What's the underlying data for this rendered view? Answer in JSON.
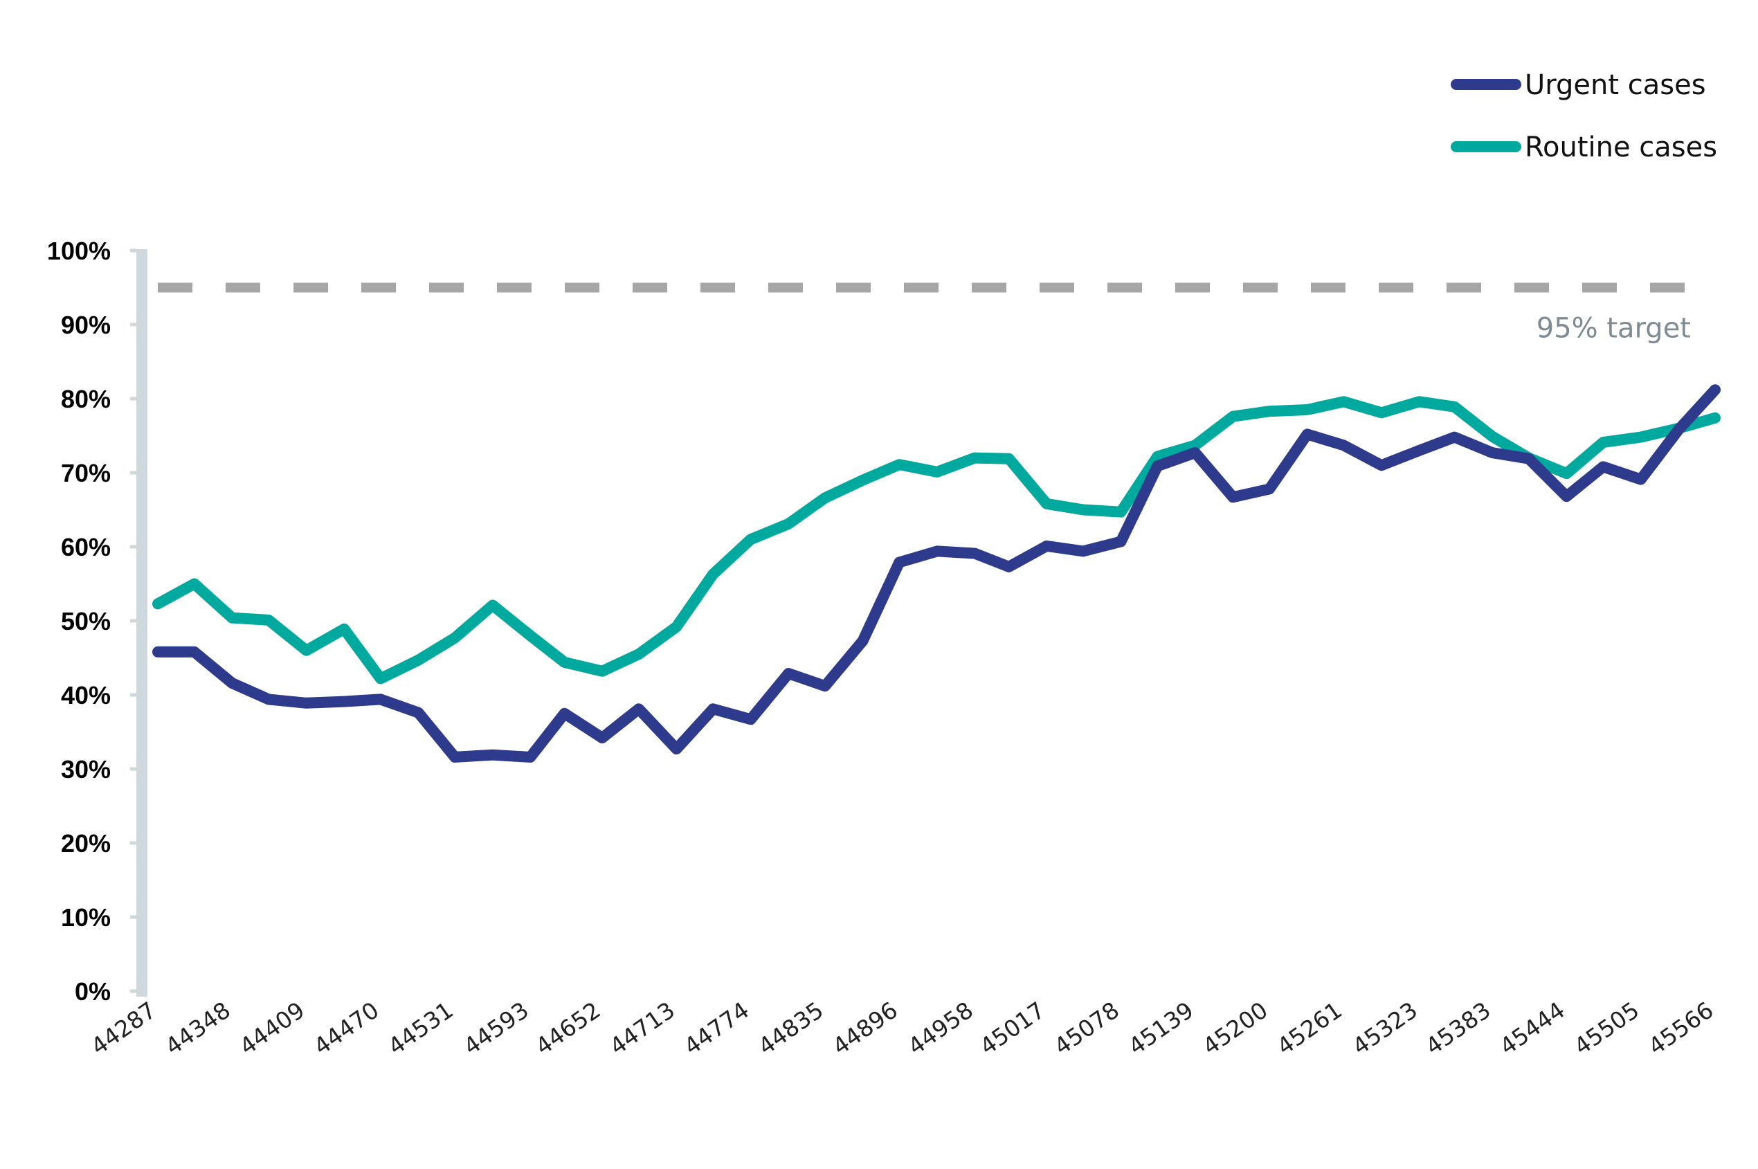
{
  "chart_data": {
    "type": "line",
    "x_tick_labels": [
      "44287",
      "44348",
      "44409",
      "44470",
      "44531",
      "44593",
      "44652",
      "44713",
      "44774",
      "44835",
      "44896",
      "44958",
      "45017",
      "45078",
      "45139",
      "45200",
      "45261",
      "45323",
      "45383",
      "45444",
      "45505",
      "45566"
    ],
    "y_tick_labels": [
      "0%",
      "10%",
      "20%",
      "30%",
      "40%",
      "50%",
      "60%",
      "70%",
      "80%",
      "90%",
      "100%"
    ],
    "ylim": [
      0,
      100
    ],
    "xlim": [
      44287,
      45566
    ],
    "grid": false,
    "legend_position": "top-right",
    "series": [
      {
        "name": "Urgent cases",
        "color": "#2e3a8c",
        "x": [
          44287,
          44317,
          44348,
          44378,
          44409,
          44440,
          44470,
          44501,
          44531,
          44562,
          44593,
          44621,
          44652,
          44682,
          44713,
          44743,
          44774,
          44805,
          44835,
          44866,
          44896,
          44927,
          44958,
          44986,
          45017,
          45047,
          45078,
          45108,
          45139,
          45170,
          45200,
          45231,
          45261,
          45292,
          45323,
          45352,
          45383,
          45413,
          45444,
          45474,
          45505,
          45536,
          45566
        ],
        "values": [
          45.8,
          45.8,
          41.6,
          39.4,
          38.9,
          39.1,
          39.4,
          37.6,
          31.6,
          31.9,
          31.6,
          37.5,
          34.2,
          38.1,
          32.7,
          38.1,
          36.7,
          42.9,
          41.2,
          47.3,
          57.9,
          59.4,
          59.1,
          57.3,
          60.1,
          59.4,
          60.7,
          70.9,
          72.7,
          66.7,
          67.8,
          75.2,
          73.7,
          71.0,
          73.0,
          74.8,
          72.7,
          71.9,
          66.8,
          70.8,
          69.1,
          75.8,
          81.2
        ]
      },
      {
        "name": "Routine cases",
        "color": "#00a99d",
        "x": [
          44287,
          44317,
          44348,
          44378,
          44409,
          44440,
          44470,
          44501,
          44531,
          44562,
          44593,
          44621,
          44652,
          44682,
          44713,
          44743,
          44774,
          44805,
          44835,
          44866,
          44896,
          44927,
          44958,
          44986,
          45017,
          45047,
          45078,
          45108,
          45139,
          45170,
          45200,
          45231,
          45261,
          45292,
          45323,
          45352,
          45383,
          45413,
          45444,
          45474,
          45505,
          45536,
          45566
        ],
        "values": [
          52.3,
          55.0,
          50.4,
          50.1,
          46.0,
          48.9,
          42.2,
          44.7,
          47.7,
          52.1,
          48.0,
          44.4,
          43.2,
          45.5,
          49.2,
          56.3,
          61.0,
          63.1,
          66.6,
          69.0,
          71.1,
          70.1,
          72.0,
          71.9,
          65.8,
          65.0,
          64.7,
          72.2,
          73.7,
          77.6,
          78.3,
          78.5,
          79.6,
          78.1,
          79.6,
          78.9,
          74.9,
          72.0,
          69.9,
          74.1,
          74.8,
          76.0,
          77.4
        ]
      }
    ],
    "target": {
      "value": 95,
      "label": "95% target",
      "color": "#a6a6a6",
      "label_color": "#7f8b94"
    },
    "axis_color": "#cfd8dc"
  }
}
